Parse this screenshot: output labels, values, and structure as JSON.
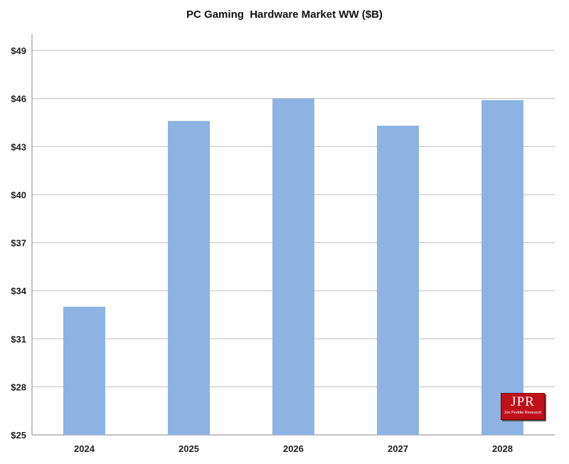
{
  "chart_data": {
    "type": "bar",
    "title": "PC Gaming  Hardware Market WW ($B)",
    "xlabel": "",
    "ylabel": "",
    "categories": [
      "2024",
      "2025",
      "2026",
      "2027",
      "2028"
    ],
    "series": [
      {
        "values": [
          33.0,
          44.6,
          46.0,
          44.3,
          45.9
        ]
      }
    ],
    "ylim": [
      25,
      49
    ],
    "yticks": [
      25,
      28,
      31,
      34,
      37,
      40,
      43,
      46,
      49
    ],
    "ytick_labels": [
      "$25",
      "$28",
      "$31",
      "$34",
      "$37",
      "$40",
      "$43",
      "$46",
      "$49"
    ],
    "grid": true,
    "colors": {
      "bar": "#8db3e2",
      "grid": "#c8c8c8",
      "axis": "#9a9a9a"
    }
  },
  "logo": {
    "main": "JPR",
    "sub": "Jon Peddie Research"
  }
}
